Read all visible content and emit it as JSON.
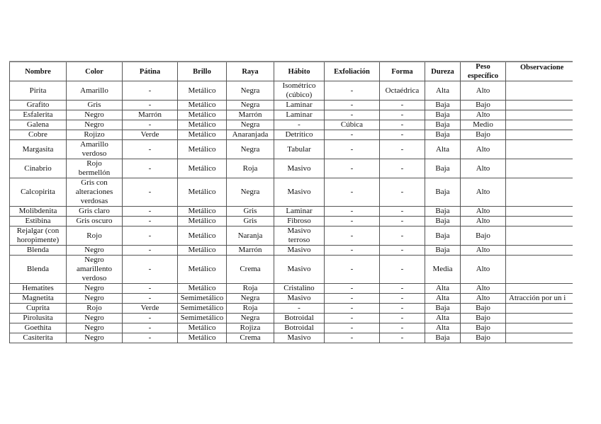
{
  "table": {
    "headers": [
      "Nombre",
      "Color",
      "Pátina",
      "Brillo",
      "Raya",
      "Hábito",
      "Exfoliación",
      "Forma",
      "Dureza",
      "Peso\nespecífico",
      "Observacione"
    ],
    "rows": [
      [
        "Pirita",
        "Amarillo",
        "-",
        "Metálico",
        "Negra",
        "Isométrico\n(cúbico)",
        "-",
        "Octaédrica",
        "Alta",
        "Alto",
        ""
      ],
      [
        "Grafito",
        "Gris",
        "-",
        "Metálico",
        "Negra",
        "Laminar",
        "-",
        "-",
        "Baja",
        "Bajo",
        ""
      ],
      [
        "Esfalerita",
        "Negro",
        "Marrón",
        "Metálico",
        "Marrón",
        "Laminar",
        "-",
        "-",
        "Baja",
        "Alto",
        ""
      ],
      [
        "Galena",
        "Negro",
        "-",
        "Metálico",
        "Negra",
        "-",
        "Cúbica",
        "-",
        "Baja",
        "Medio",
        ""
      ],
      [
        "Cobre",
        "Rojizo",
        "Verde",
        "Metálico",
        "Anaranjada",
        "Detrítico",
        "-",
        "-",
        "Baja",
        "Bajo",
        ""
      ],
      [
        "Margasita",
        "Amarillo\nverdoso",
        "-",
        "Metálico",
        "Negra",
        "Tabular",
        "-",
        "-",
        "Alta",
        "Alto",
        ""
      ],
      [
        "Cinabrio",
        "Rojo\nbermellón",
        "-",
        "Metálico",
        "Roja",
        "Masivo",
        "-",
        "-",
        "Baja",
        "Alto",
        ""
      ],
      [
        "Calcopirita",
        "Gris con\nalteraciones\nverdosas",
        "-",
        "Metálico",
        "Negra",
        "Masivo",
        "-",
        "-",
        "Baja",
        "Alto",
        ""
      ],
      [
        "Molibdenita",
        "Gris claro",
        "-",
        "Metálico",
        "Gris",
        "Laminar",
        "-",
        "-",
        "Baja",
        "Alto",
        ""
      ],
      [
        "Estibina",
        "Gris oscuro",
        "-",
        "Metálico",
        "Gris",
        "Fibroso",
        "-",
        "-",
        "Baja",
        "Alto",
        ""
      ],
      [
        "Rejalgar (con\nhoropimente)",
        "Rojo",
        "-",
        "Metálico",
        "Naranja",
        "Masivo\nterroso",
        "-",
        "-",
        "Baja",
        "Bajo",
        ""
      ],
      [
        "Blenda",
        "Negro",
        "-",
        "Metálico",
        "Marrón",
        "Masivo",
        "-",
        "-",
        "Baja",
        "Alto",
        ""
      ],
      [
        "Blenda",
        "Negro\namarillento\nverdoso",
        "-",
        "Metálico",
        "Crema",
        "Masivo",
        "-",
        "-",
        "Media",
        "Alto",
        ""
      ],
      [
        "Hematites",
        "Negro",
        "-",
        "Metálico",
        "Roja",
        "Cristalino",
        "-",
        "-",
        "Alta",
        "Alto",
        ""
      ],
      [
        "Magnetita",
        "Negro",
        "-",
        "Semimetálico",
        "Negra",
        "Masivo",
        "-",
        "-",
        "Alta",
        "Alto",
        "Atracción por un i"
      ],
      [
        "Cuprita",
        "Rojo",
        "Verde",
        "Semimetálico",
        "Roja",
        "-",
        "-",
        "-",
        "Baja",
        "Bajo",
        ""
      ],
      [
        "Pirolusita",
        "Negro",
        "-",
        "Semimetálico",
        "Negra",
        "Botroidal",
        "-",
        "-",
        "Alta",
        "Bajo",
        ""
      ],
      [
        "Goethita",
        "Negro",
        "-",
        "Metálico",
        "Rojiza",
        "Botroidal",
        "-",
        "-",
        "Alta",
        "Bajo",
        ""
      ],
      [
        "Casiterita",
        "Negro",
        "-",
        "Metálico",
        "Crema",
        "Masivo",
        "-",
        "-",
        "Baja",
        "Bajo",
        ""
      ]
    ]
  }
}
